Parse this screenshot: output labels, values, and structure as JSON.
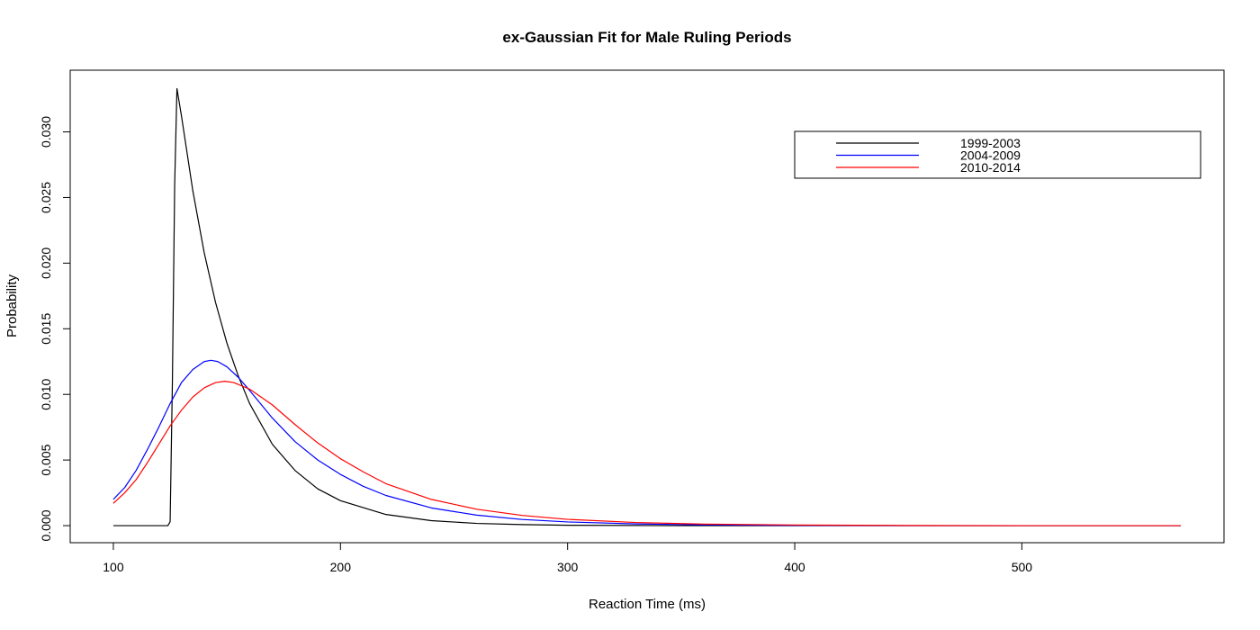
{
  "chart_data": {
    "type": "line",
    "title": "ex-Gaussian Fit for Male Ruling Periods",
    "xlabel": "Reaction Time (ms)",
    "ylabel": "Probability",
    "xlim": [
      81,
      589
    ],
    "ylim": [
      -0.0013,
      0.0347
    ],
    "x_ticks": [
      100,
      200,
      300,
      400,
      500
    ],
    "x_tick_labels": [
      "100",
      "200",
      "300",
      "400",
      "500"
    ],
    "y_ticks": [
      0,
      0.005,
      0.01,
      0.015,
      0.02,
      0.025,
      0.03
    ],
    "y_tick_labels": [
      "0.000",
      "0.005",
      "0.010",
      "0.015",
      "0.020",
      "0.025",
      "0.030"
    ],
    "grid": false,
    "legend_position": "top-right",
    "series": [
      {
        "name": "1999-2003",
        "color": "#000000",
        "points": [
          [
            100,
            0.0
          ],
          [
            110,
            0.0
          ],
          [
            120,
            0.0
          ],
          [
            124,
            0.0
          ],
          [
            125,
            0.0003
          ],
          [
            126,
            0.011
          ],
          [
            127,
            0.026
          ],
          [
            128,
            0.0333
          ],
          [
            130,
            0.0312
          ],
          [
            135,
            0.0255
          ],
          [
            140,
            0.0208
          ],
          [
            145,
            0.017
          ],
          [
            150,
            0.0139
          ],
          [
            155,
            0.0114
          ],
          [
            160,
            0.0093
          ],
          [
            170,
            0.0062
          ],
          [
            180,
            0.0042
          ],
          [
            190,
            0.0028
          ],
          [
            200,
            0.0019
          ],
          [
            220,
            0.00085
          ],
          [
            240,
            0.00038
          ],
          [
            260,
            0.00017
          ],
          [
            280,
            8e-05
          ],
          [
            300,
            3e-05
          ],
          [
            350,
            0.0
          ],
          [
            400,
            0.0
          ],
          [
            450,
            0.0
          ],
          [
            500,
            0.0
          ],
          [
            570,
            0.0
          ]
        ]
      },
      {
        "name": "2004-2009",
        "color": "#0000ff",
        "points": [
          [
            100,
            0.002
          ],
          [
            105,
            0.0029
          ],
          [
            110,
            0.0042
          ],
          [
            115,
            0.0058
          ],
          [
            120,
            0.0075
          ],
          [
            125,
            0.0093
          ],
          [
            130,
            0.0109
          ],
          [
            135,
            0.0119
          ],
          [
            140,
            0.0125
          ],
          [
            143,
            0.0126
          ],
          [
            146,
            0.0125
          ],
          [
            150,
            0.0121
          ],
          [
            155,
            0.0113
          ],
          [
            160,
            0.0103
          ],
          [
            170,
            0.0082
          ],
          [
            180,
            0.0064
          ],
          [
            190,
            0.005
          ],
          [
            200,
            0.0039
          ],
          [
            210,
            0.003
          ],
          [
            220,
            0.0023
          ],
          [
            240,
            0.00135
          ],
          [
            260,
            0.0008
          ],
          [
            280,
            0.00047
          ],
          [
            300,
            0.00028
          ],
          [
            330,
            0.00013
          ],
          [
            360,
            6e-05
          ],
          [
            400,
            2e-05
          ],
          [
            450,
            0.0
          ],
          [
            500,
            0.0
          ],
          [
            570,
            0.0
          ]
        ]
      },
      {
        "name": "2010-2014",
        "color": "#ff0000",
        "points": [
          [
            100,
            0.0017
          ],
          [
            105,
            0.0025
          ],
          [
            110,
            0.0035
          ],
          [
            115,
            0.0048
          ],
          [
            120,
            0.0062
          ],
          [
            125,
            0.0076
          ],
          [
            130,
            0.0088
          ],
          [
            135,
            0.0098
          ],
          [
            140,
            0.0105
          ],
          [
            145,
            0.0109
          ],
          [
            149,
            0.011
          ],
          [
            153,
            0.0109
          ],
          [
            160,
            0.0104
          ],
          [
            170,
            0.0092
          ],
          [
            180,
            0.0077
          ],
          [
            190,
            0.0063
          ],
          [
            200,
            0.0051
          ],
          [
            210,
            0.0041
          ],
          [
            220,
            0.0032
          ],
          [
            240,
            0.002
          ],
          [
            260,
            0.00125
          ],
          [
            280,
            0.00078
          ],
          [
            300,
            0.00048
          ],
          [
            330,
            0.00024
          ],
          [
            360,
            0.00012
          ],
          [
            400,
            5e-05
          ],
          [
            450,
            1e-05
          ],
          [
            500,
            0.0
          ],
          [
            570,
            0.0
          ]
        ]
      }
    ]
  }
}
